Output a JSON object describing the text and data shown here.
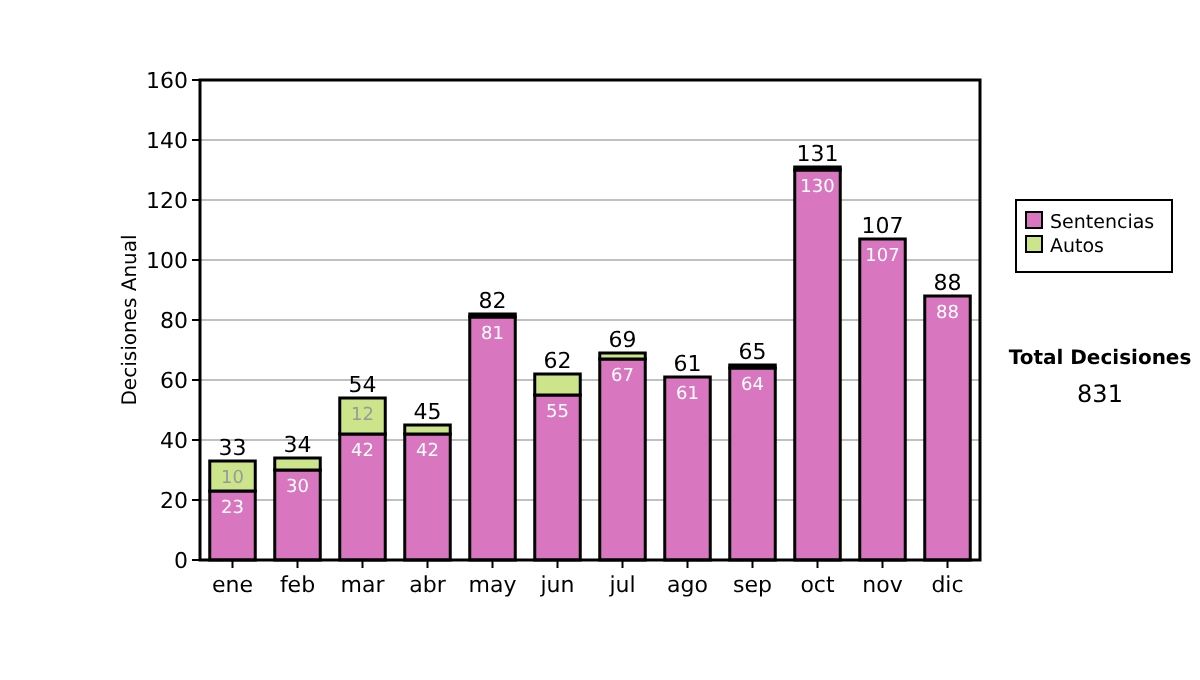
{
  "chart_data": {
    "type": "bar",
    "stacked": true,
    "ylabel": "Decisiones Anual",
    "categories": [
      "ene",
      "feb",
      "mar",
      "abr",
      "may",
      "jun",
      "jul",
      "ago",
      "sep",
      "oct",
      "nov",
      "dic"
    ],
    "series": [
      {
        "name": "Sentencias",
        "color": "#d877c0",
        "values": [
          23,
          30,
          42,
          42,
          81,
          55,
          67,
          61,
          64,
          130,
          107,
          88
        ],
        "value_labels": [
          "23",
          "30",
          "42",
          "42",
          "81",
          "55",
          "67",
          "61",
          "64",
          "130",
          "107",
          "88"
        ]
      },
      {
        "name": "Autos",
        "color": "#cce58a",
        "values": [
          10,
          4,
          12,
          3,
          1,
          7,
          2,
          0,
          1,
          1,
          0,
          0
        ],
        "value_labels": [
          "10",
          null,
          "12",
          null,
          null,
          null,
          null,
          null,
          null,
          null,
          null,
          null
        ]
      }
    ],
    "totals": [
      "33",
      "34",
      "54",
      "45",
      "82",
      "62",
      "69",
      "61",
      "65",
      "131",
      "107",
      "88"
    ],
    "ylim": [
      0,
      160
    ],
    "yticks": [
      0,
      20,
      40,
      60,
      80,
      100,
      120,
      140,
      160
    ],
    "grid": "y",
    "legend": "right",
    "annotations": [
      "Total Decisiones",
      "831"
    ]
  }
}
